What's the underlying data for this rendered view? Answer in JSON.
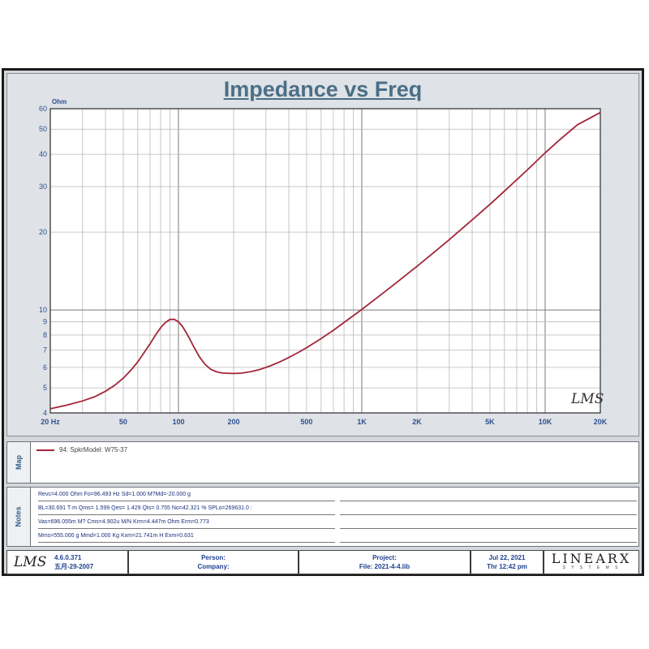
{
  "title": "Impedance vs Freq",
  "chart_data": {
    "type": "line",
    "title": "Impedance vs Freq",
    "ylabel_unit": "Ohm",
    "xlabel_unit": "Hz",
    "x_scale": "log",
    "y_scale": "log",
    "xlim": [
      20,
      20000
    ],
    "ylim": [
      4,
      60
    ],
    "x_ticks": [
      {
        "value": 20,
        "label": "20 Hz"
      },
      {
        "value": 50,
        "label": "50"
      },
      {
        "value": 100,
        "label": "100"
      },
      {
        "value": 200,
        "label": "200"
      },
      {
        "value": 500,
        "label": "500"
      },
      {
        "value": 1000,
        "label": "1K"
      },
      {
        "value": 2000,
        "label": "2K"
      },
      {
        "value": 5000,
        "label": "5K"
      },
      {
        "value": 10000,
        "label": "10K"
      },
      {
        "value": 20000,
        "label": "20K"
      }
    ],
    "y_ticks": [
      4,
      5,
      6,
      7,
      8,
      9,
      10,
      20,
      30,
      40,
      50,
      60
    ],
    "grid": true,
    "series": [
      {
        "name": "94: SpkrModel: W75-37",
        "color": "#a3253a",
        "x": [
          20,
          25,
          30,
          35,
          40,
          45,
          50,
          55,
          60,
          65,
          70,
          75,
          80,
          85,
          90,
          95,
          100,
          105,
          110,
          115,
          120,
          130,
          140,
          150,
          160,
          170,
          180,
          200,
          220,
          250,
          280,
          320,
          360,
          400,
          450,
          500,
          600,
          700,
          800,
          1000,
          1200,
          1500,
          2000,
          2500,
          3000,
          4000,
          5000,
          6000,
          8000,
          10000,
          12000,
          15000,
          20000
        ],
        "y": [
          4.15,
          4.3,
          4.45,
          4.62,
          4.85,
          5.12,
          5.45,
          5.85,
          6.3,
          6.85,
          7.4,
          8.0,
          8.55,
          8.95,
          9.2,
          9.2,
          9.0,
          8.65,
          8.2,
          7.75,
          7.3,
          6.6,
          6.15,
          5.9,
          5.78,
          5.72,
          5.7,
          5.68,
          5.7,
          5.78,
          5.9,
          6.1,
          6.32,
          6.55,
          6.85,
          7.15,
          7.75,
          8.35,
          8.95,
          10.05,
          11.1,
          12.55,
          14.75,
          16.8,
          18.7,
          22.3,
          25.6,
          28.8,
          34.8,
          40.5,
          45.5,
          52.0,
          58.0
        ]
      }
    ]
  },
  "watermark": "LMS",
  "map": {
    "label": "Map",
    "legend_entry": "94: SpkrModel: W75-37"
  },
  "notes": {
    "label": "Notes",
    "lines": [
      "Revc=4.000 Ohm  Fo=96.493 Hz  Sd=1.000 M?Md=-20.000 g",
      "BL=30.691 T∙m  Qms= 1.599  Qes= 1.429  Qts= 0.755  No=42.321 %  SPLo=269631.0 :",
      "Vas=696.055m M? Cms=4.902u M/N  Krm=4.447m Ohm  Erm=0.773",
      "Mms=555.000 g  Mmd=1.000 Kg  Kxm=21.741m H  Exm=0.631"
    ]
  },
  "footer": {
    "logo": "LMS",
    "version": "4.6.0.371",
    "version_date": "五月-29-2007",
    "person_label": "Person:",
    "company_label": "Company:",
    "project_label": "Project:",
    "file_label": "File: 2021-4-4.lib",
    "date": "Jul 22, 2021",
    "time": "Thr 12:42 pm",
    "brand": "LINEARX",
    "brand_sub": "S Y S T E M S"
  }
}
